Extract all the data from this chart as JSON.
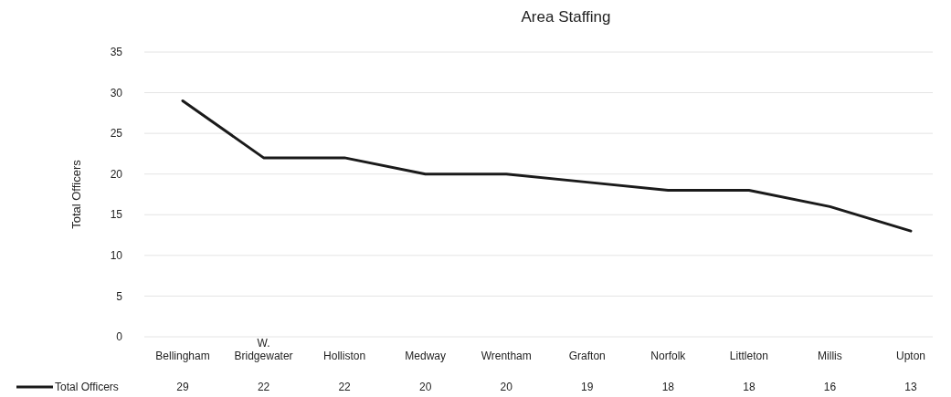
{
  "chart_data": {
    "type": "line",
    "title": "Area Staffing",
    "ylabel": "Total Officers",
    "categories": [
      "Bellingham",
      "W. Bridgewater",
      "Holliston",
      "Medway",
      "Wrentham",
      "Grafton",
      "Norfolk",
      "Littleton",
      "Millis",
      "Upton"
    ],
    "series": [
      {
        "name": "Total Officers",
        "color": "#1a1a1a",
        "values": [
          29,
          22,
          22,
          20,
          20,
          19,
          18,
          18,
          16,
          13
        ]
      }
    ],
    "ylim": [
      0,
      35
    ],
    "yticks": [
      0,
      5,
      10,
      15,
      20,
      25,
      30,
      35
    ],
    "grid": "y",
    "legend": "bottom left",
    "data_labels": true,
    "marker": "none",
    "line_style": "solid"
  }
}
